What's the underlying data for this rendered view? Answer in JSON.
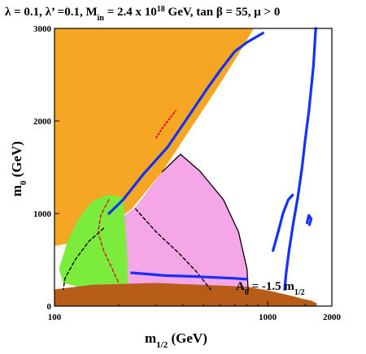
{
  "chart_data": {
    "type": "area",
    "title": {
      "text": "λ = 0.1, λ’ =0.1, M",
      "sub": "in",
      "mid": " = 2.4 x 10",
      "sup": "18",
      "end": " GeV, tan β = 55,  μ > 0"
    },
    "xlabel": {
      "text": "m",
      "sub": "1/2",
      "unit": " (GeV)"
    },
    "ylabel": {
      "text": "m",
      "sub": "0",
      "unit": " (GeV)"
    },
    "annotation": {
      "text": "A",
      "sub": "0",
      "mid": " = -1.5 m",
      "sub2": "1/2"
    },
    "xlim": [
      100,
      2000
    ],
    "ylim": [
      0,
      3000
    ],
    "x_ticks": [
      "100",
      "1000",
      "2000"
    ],
    "y_ticks": [
      "0",
      "1000",
      "2000",
      "3000"
    ],
    "grid": false,
    "legend": "none",
    "regions": [
      {
        "name": "orange",
        "color": "#f5a623",
        "points": [
          [
            100,
            3000
          ],
          [
            860,
            3000
          ],
          [
            720,
            2700
          ],
          [
            560,
            2300
          ],
          [
            430,
            1900
          ],
          [
            320,
            1450
          ],
          [
            230,
            1050
          ],
          [
            170,
            820
          ],
          [
            120,
            680
          ],
          [
            100,
            650
          ]
        ]
      },
      {
        "name": "pink",
        "color": "#f4a6e6",
        "points": [
          [
            170,
            800
          ],
          [
            240,
            1070
          ],
          [
            320,
            1450
          ],
          [
            390,
            1640
          ],
          [
            480,
            1460
          ],
          [
            620,
            1150
          ],
          [
            730,
            800
          ],
          [
            800,
            400
          ],
          [
            810,
            170
          ],
          [
            230,
            170
          ],
          [
            170,
            200
          ],
          [
            150,
            300
          ],
          [
            140,
            500
          ]
        ]
      },
      {
        "name": "green",
        "color": "#7cec3c",
        "points": [
          [
            105,
            400
          ],
          [
            115,
            700
          ],
          [
            130,
            950
          ],
          [
            150,
            1130
          ],
          [
            175,
            1200
          ],
          [
            210,
            1180
          ],
          [
            220,
            500
          ],
          [
            220,
            170
          ],
          [
            190,
            170
          ],
          [
            150,
            170
          ],
          [
            110,
            250
          ]
        ]
      },
      {
        "name": "brown",
        "color": "#b85c1a",
        "points": [
          [
            100,
            0
          ],
          [
            100,
            180
          ],
          [
            150,
            230
          ],
          [
            300,
            250
          ],
          [
            800,
            210
          ],
          [
            1000,
            170
          ],
          [
            1300,
            110
          ],
          [
            1450,
            80
          ],
          [
            1600,
            60
          ],
          [
            1700,
            30
          ],
          [
            1700,
            0
          ]
        ]
      }
    ],
    "lines": [
      {
        "name": "black-solid",
        "color": "#000000",
        "style": "solid",
        "points": [
          [
            320,
            1450
          ],
          [
            390,
            1640
          ],
          [
            480,
            1460
          ],
          [
            620,
            1150
          ],
          [
            730,
            800
          ],
          [
            800,
            400
          ],
          [
            810,
            170
          ]
        ]
      },
      {
        "name": "black-dashed",
        "color": "#000000",
        "style": "dashed",
        "points": [
          [
            170,
            840
          ],
          [
            145,
            700
          ],
          [
            125,
            500
          ],
          [
            112,
            300
          ],
          [
            110,
            180
          ]
        ]
      },
      {
        "name": "black-dashed-2",
        "color": "#000000",
        "style": "dashed",
        "points": [
          [
            240,
            1050
          ],
          [
            300,
            800
          ],
          [
            380,
            580
          ],
          [
            460,
            380
          ],
          [
            540,
            180
          ]
        ]
      },
      {
        "name": "red-dashed",
        "color": "#e0102a",
        "style": "dashed",
        "points": [
          [
            180,
            1150
          ],
          [
            165,
            980
          ],
          [
            160,
            800
          ],
          [
            170,
            600
          ],
          [
            185,
            420
          ],
          [
            200,
            250
          ]
        ]
      },
      {
        "name": "red-dots",
        "color": "#e0102a",
        "style": "dotted",
        "points": [
          [
            300,
            1820
          ],
          [
            320,
            1920
          ],
          [
            345,
            2020
          ],
          [
            370,
            2110
          ]
        ]
      },
      {
        "name": "blue-strip",
        "color": "#1230ff",
        "style": "solid",
        "points": [
          [
            180,
            1000
          ],
          [
            210,
            1150
          ],
          [
            260,
            1420
          ],
          [
            340,
            1720
          ],
          [
            440,
            2100
          ],
          [
            520,
            2350
          ],
          [
            600,
            2550
          ],
          [
            700,
            2750
          ],
          [
            800,
            2850
          ],
          [
            950,
            2950
          ]
        ]
      },
      {
        "name": "blue-bottom",
        "color": "#1230ff",
        "style": "solid",
        "points": [
          [
            230,
            360
          ],
          [
            330,
            330
          ],
          [
            450,
            320
          ],
          [
            560,
            310
          ],
          [
            700,
            300
          ],
          [
            800,
            290
          ]
        ]
      },
      {
        "name": "blue-right",
        "color": "#1230ff",
        "style": "solid",
        "points": [
          [
            1200,
            180
          ],
          [
            1220,
            350
          ],
          [
            1260,
            600
          ],
          [
            1320,
            900
          ],
          [
            1390,
            1200
          ],
          [
            1450,
            1500
          ],
          [
            1500,
            1800
          ],
          [
            1560,
            2100
          ],
          [
            1600,
            2350
          ],
          [
            1640,
            2600
          ],
          [
            1660,
            2800
          ],
          [
            1680,
            3000
          ]
        ]
      },
      {
        "name": "blue-mid",
        "color": "#1230ff",
        "style": "solid",
        "points": [
          [
            1060,
            600
          ],
          [
            1120,
            800
          ],
          [
            1180,
            1000
          ],
          [
            1250,
            1150
          ],
          [
            1310,
            1200
          ]
        ]
      },
      {
        "name": "blue-small",
        "color": "#1230ff",
        "style": "solid",
        "points": [
          [
            1530,
            900
          ],
          [
            1560,
            980
          ],
          [
            1600,
            940
          ],
          [
            1570,
            880
          ]
        ]
      }
    ]
  }
}
